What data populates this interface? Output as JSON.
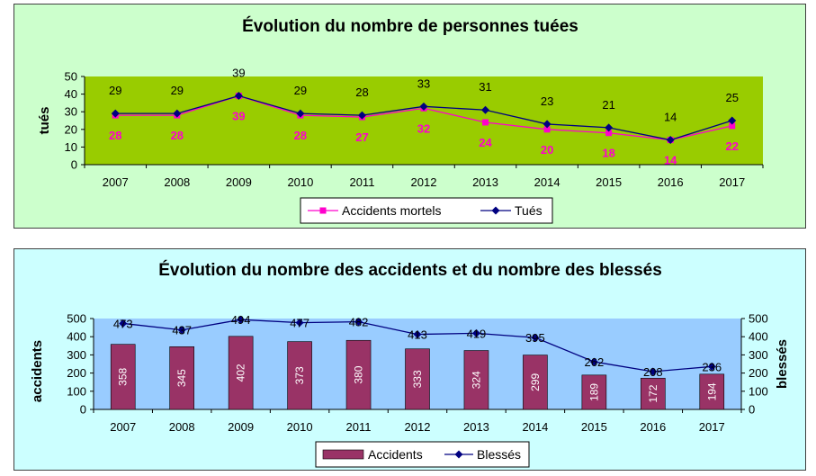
{
  "chart_data": [
    {
      "type": "line",
      "title": "Évolution du nombre de personnes tuées",
      "ylabel": "tués",
      "ylim": [
        0,
        50
      ],
      "yticks": [
        0,
        10,
        20,
        30,
        40,
        50
      ],
      "grid": false,
      "legend_position": "bottom",
      "categories": [
        "2007",
        "2008",
        "2009",
        "2010",
        "2011",
        "2012",
        "2013",
        "2014",
        "2015",
        "2016",
        "2017"
      ],
      "series": [
        {
          "name": "Accidents mortels",
          "values": [
            28,
            28,
            39,
            28,
            27,
            32,
            24,
            20,
            18,
            14,
            22
          ],
          "color": "#ff00cc",
          "marker": "square"
        },
        {
          "name": "Tués",
          "values": [
            29,
            29,
            39,
            29,
            28,
            33,
            31,
            23,
            21,
            14,
            25
          ],
          "color": "#000080",
          "marker": "diamond"
        }
      ],
      "colors": {
        "panel_bg": "#ccffcc",
        "plot_bg": "#99cc00"
      }
    },
    {
      "type": "bar",
      "title": "Évolution du nombre des accidents et du nombre des blessés",
      "ylabel": "accidents",
      "y2label": "blessés",
      "ylim": [
        0,
        500
      ],
      "y2lim": [
        0,
        500
      ],
      "yticks": [
        0,
        100,
        200,
        300,
        400,
        500
      ],
      "grid": false,
      "legend_position": "bottom",
      "categories": [
        "2007",
        "2008",
        "2009",
        "2010",
        "2011",
        "2012",
        "2013",
        "2014",
        "2015",
        "2016",
        "2017"
      ],
      "series": [
        {
          "name": "Accidents",
          "type": "bar",
          "values": [
            358,
            345,
            402,
            373,
            380,
            333,
            324,
            299,
            189,
            172,
            194
          ],
          "color": "#993366"
        },
        {
          "name": "Blessés",
          "type": "line",
          "values": [
            473,
            437,
            494,
            477,
            482,
            413,
            419,
            395,
            262,
            208,
            236
          ],
          "color": "#000080",
          "marker": "diamond"
        }
      ],
      "colors": {
        "panel_bg": "#ccffff",
        "plot_bg": "#99ccff"
      }
    }
  ]
}
